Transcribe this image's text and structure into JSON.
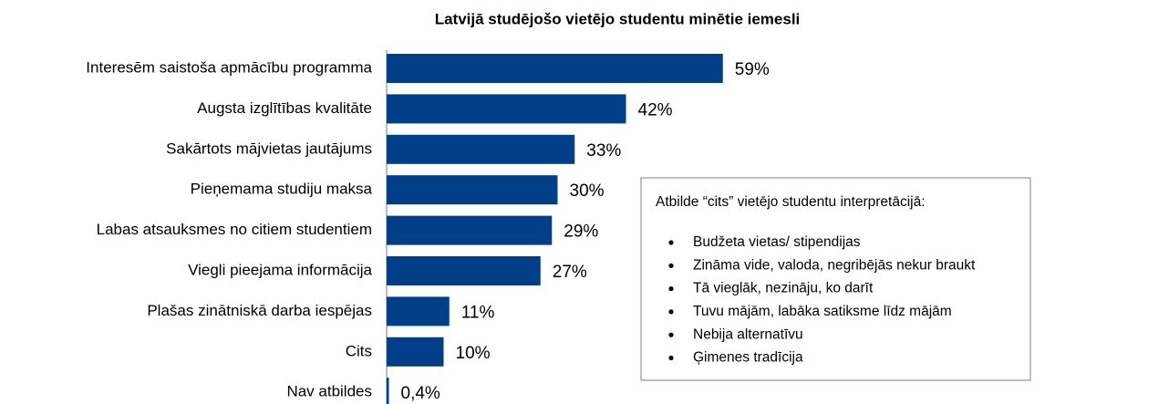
{
  "chart_data": {
    "type": "bar",
    "orientation": "horizontal",
    "title": "Latvijā studējošo vietējo studentu minētie iemesli",
    "categories": [
      "Interesēm saistoša apmācību programma",
      "Augsta izglītības kvalitāte",
      "Sakārtots mājvietas jautājums",
      "Pieņemama studiju maksa",
      "Labas atsauksmes no citiem studentiem",
      "Viegli pieejama informācija",
      "Plašas zinātniskā darba iespējas",
      "Cits",
      "Nav atbildes"
    ],
    "values": [
      59,
      42,
      33,
      30,
      29,
      27,
      11,
      10,
      0.4
    ],
    "value_labels": [
      "59%",
      "42%",
      "33%",
      "30%",
      "29%",
      "27%",
      "11%",
      "10%",
      "0,4%"
    ],
    "color": "#003f87",
    "annotation": {
      "title": "Atbilde “cits” vietējo studentu interpretācijā:",
      "items": [
        "Budžeta vietas/ stipendijas",
        "Zināma vide, valoda, negribējās nekur braukt",
        "Tā vieglāk, nezināju, ko darīt",
        "Tuvu mājām, labāka satiksme līdz mājām",
        "Nebija alternatīvu",
        "Ģimenes tradīcija"
      ]
    }
  }
}
